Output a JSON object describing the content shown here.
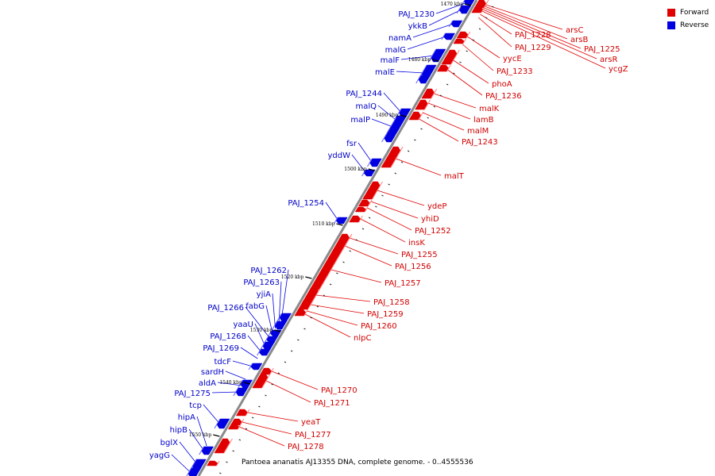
{
  "genome_title": "Pantoea ananatis AJ13355 DNA, complete genome. - 0..4555536",
  "colors": {
    "forward": "#e00000",
    "reverse": "#0000e0",
    "backbone": "#8a8a8a"
  },
  "legend": [
    {
      "label": "Forward",
      "strand": "forward"
    },
    {
      "label": "Reverse",
      "strand": "reverse"
    }
  ],
  "ticks": [
    "1470 kbp",
    "1480 kbp",
    "1490 kbp",
    "1500 kbp",
    "1510 kbp",
    "1520 kbp",
    "1530 kbp",
    "1540 kbp",
    "1550 kbp"
  ],
  "forward_labels": [
    "arsC",
    "arsB",
    "PAJ_1225",
    "arsR",
    "ycgZ",
    "PAJ_1228",
    "PAJ_1229",
    "yycE",
    "PAJ_1233",
    "phoA",
    "PAJ_1236",
    "malK",
    "lamB",
    "malM",
    "PAJ_1243",
    "malT",
    "ydeP",
    "yhiD",
    "PAJ_1252",
    "insK",
    "PAJ_1255",
    "PAJ_1256",
    "PAJ_1257",
    "PAJ_1258",
    "PAJ_1259",
    "PAJ_1260",
    "nlpC",
    "PAJ_1270",
    "PAJ_1271",
    "yeaT",
    "PAJ_1277",
    "PAJ_1278"
  ],
  "reverse_labels": [
    "PAJ_1230",
    "ykkB",
    "namA",
    "malG",
    "malF",
    "malE",
    "PAJ_1244",
    "malQ",
    "malP",
    "fsr",
    "yddW",
    "PAJ_1254",
    "PAJ_1262",
    "PAJ_1263",
    "yjiA",
    "fabG",
    "PAJ_1266",
    "yaaU",
    "PAJ_1268",
    "PAJ_1269",
    "tdcF",
    "sardH",
    "aldA",
    "PAJ_1275",
    "tcp",
    "hipA",
    "hipB",
    "bglX",
    "yagG"
  ]
}
